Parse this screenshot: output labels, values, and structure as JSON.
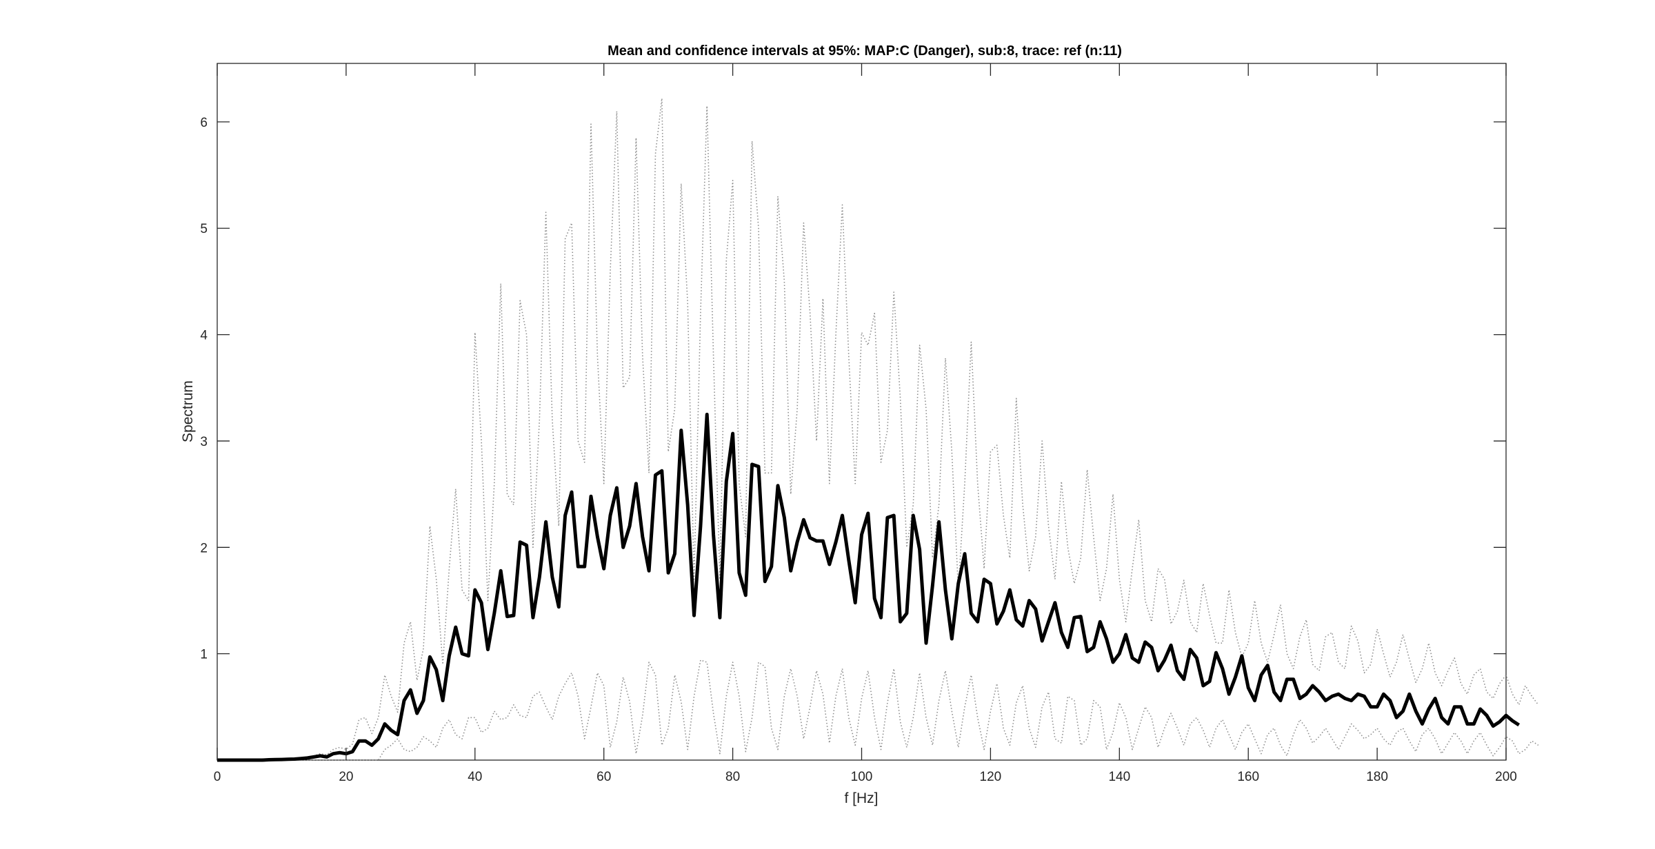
{
  "chart_data": {
    "type": "line",
    "title": "Mean and confidence intervals at 95%: MAP:C (Danger), sub:8, trace: ref (n:11)",
    "xlabel": "f [Hz]",
    "ylabel": "Spectrum",
    "xlim": [
      0,
      200
    ],
    "ylim": [
      0,
      6.55
    ],
    "xticks": [
      0,
      20,
      40,
      60,
      80,
      100,
      120,
      140,
      160,
      180,
      200
    ],
    "yticks": [
      1,
      2,
      3,
      4,
      5,
      6
    ],
    "grid": false,
    "legend": "none",
    "x_step": 1,
    "series": [
      {
        "role": "mean",
        "style": "solid-thick",
        "color": "#000000",
        "values": [
          0,
          0,
          0,
          0,
          0,
          0,
          0,
          0,
          0.003,
          0.005,
          0.006,
          0.008,
          0.01,
          0.015,
          0.02,
          0.03,
          0.04,
          0.03,
          0.06,
          0.07,
          0.06,
          0.08,
          0.18,
          0.18,
          0.14,
          0.2,
          0.34,
          0.28,
          0.24,
          0.56,
          0.66,
          0.44,
          0.56,
          0.97,
          0.85,
          0.56,
          0.98,
          1.25,
          1.0,
          0.98,
          1.6,
          1.48,
          1.04,
          1.38,
          1.78,
          1.35,
          1.36,
          2.05,
          2.02,
          1.34,
          1.72,
          2.24,
          1.72,
          1.44,
          2.3,
          2.52,
          1.82,
          1.82,
          2.48,
          2.1,
          1.8,
          2.3,
          2.56,
          2.0,
          2.2,
          2.6,
          2.1,
          1.78,
          2.68,
          2.72,
          1.76,
          1.94,
          3.1,
          2.4,
          1.36,
          2.2,
          3.25,
          2.12,
          1.34,
          2.62,
          3.07,
          1.76,
          1.55,
          2.78,
          2.76,
          1.68,
          1.82,
          2.58,
          2.28,
          1.78,
          2.05,
          2.26,
          2.09,
          2.06,
          2.06,
          1.84,
          2.05,
          2.3,
          1.88,
          1.48,
          2.12,
          2.32,
          1.52,
          1.34,
          2.28,
          2.3,
          1.3,
          1.38,
          2.3,
          1.98,
          1.1,
          1.64,
          2.24,
          1.6,
          1.14,
          1.66,
          1.94,
          1.38,
          1.3,
          1.7,
          1.66,
          1.28,
          1.4,
          1.6,
          1.32,
          1.26,
          1.5,
          1.42,
          1.12,
          1.3,
          1.48,
          1.2,
          1.06,
          1.34,
          1.35,
          1.02,
          1.06,
          1.3,
          1.14,
          0.92,
          1.0,
          1.18,
          0.96,
          0.92,
          1.11,
          1.06,
          0.84,
          0.94,
          1.08,
          0.84,
          0.76,
          1.04,
          0.96,
          0.7,
          0.74,
          1.01,
          0.86,
          0.62,
          0.78,
          0.98,
          0.68,
          0.56,
          0.8,
          0.89,
          0.64,
          0.56,
          0.76,
          0.76,
          0.58,
          0.62,
          0.7,
          0.64,
          0.56,
          0.6,
          0.62,
          0.58,
          0.56,
          0.62,
          0.6,
          0.5,
          0.5,
          0.62,
          0.56,
          0.4,
          0.46,
          0.62,
          0.46,
          0.34,
          0.48,
          0.58,
          0.4,
          0.34,
          0.5,
          0.5,
          0.34,
          0.34,
          0.48,
          0.42,
          0.32,
          0.36,
          0.42,
          0.37,
          0.33
        ]
      },
      {
        "role": "upper-ci",
        "style": "dotted",
        "color": "#8c8c8c",
        "values": [
          0,
          0,
          0,
          0,
          0,
          0,
          0,
          0,
          0.005,
          0.008,
          0.01,
          0.012,
          0.015,
          0.02,
          0.03,
          0.04,
          0.06,
          0.05,
          0.1,
          0.12,
          0.1,
          0.15,
          0.38,
          0.4,
          0.25,
          0.4,
          0.8,
          0.6,
          0.45,
          1.1,
          1.3,
          0.75,
          1.05,
          2.2,
          1.7,
          0.9,
          1.8,
          2.55,
          1.6,
          1.5,
          4.02,
          3.0,
          1.5,
          2.6,
          4.48,
          2.5,
          2.4,
          4.32,
          4.0,
          2.0,
          3.2,
          5.15,
          3.2,
          2.2,
          4.9,
          5.05,
          3.0,
          2.8,
          5.98,
          3.8,
          2.6,
          4.6,
          6.1,
          3.5,
          3.6,
          5.85,
          3.8,
          2.7,
          5.7,
          6.22,
          2.9,
          3.3,
          5.42,
          4.3,
          1.7,
          4.2,
          6.15,
          3.8,
          1.7,
          4.7,
          5.45,
          2.6,
          2.1,
          5.82,
          5.0,
          2.7,
          2.7,
          5.3,
          4.5,
          2.5,
          3.3,
          5.05,
          4.2,
          3.0,
          4.34,
          2.6,
          4.0,
          5.22,
          3.8,
          2.6,
          4.02,
          3.9,
          4.2,
          2.8,
          3.1,
          4.4,
          3.4,
          2.0,
          2.4,
          3.9,
          3.3,
          1.9,
          2.4,
          3.78,
          2.9,
          1.6,
          2.6,
          3.93,
          2.6,
          1.8,
          2.9,
          2.96,
          2.3,
          1.9,
          3.4,
          2.4,
          1.78,
          2.1,
          3.0,
          2.2,
          1.7,
          2.62,
          2.0,
          1.66,
          1.9,
          2.73,
          2.1,
          1.5,
          1.8,
          2.5,
          1.7,
          1.3,
          1.8,
          2.26,
          1.5,
          1.3,
          1.8,
          1.7,
          1.28,
          1.4,
          1.69,
          1.3,
          1.2,
          1.66,
          1.36,
          1.1,
          1.1,
          1.6,
          1.2,
          0.97,
          1.1,
          1.5,
          1.1,
          0.92,
          1.18,
          1.46,
          1.0,
          0.86,
          1.16,
          1.32,
          0.9,
          0.84,
          1.16,
          1.2,
          0.92,
          0.86,
          1.26,
          1.12,
          0.82,
          0.9,
          1.23,
          1.0,
          0.78,
          0.92,
          1.18,
          0.95,
          0.73,
          0.86,
          1.1,
          0.82,
          0.7,
          0.84,
          0.96,
          0.72,
          0.62,
          0.8,
          0.86,
          0.64,
          0.58,
          0.72,
          0.8,
          0.62,
          0.52,
          0.7,
          0.6,
          0.52
        ]
      },
      {
        "role": "lower-ci",
        "style": "dotted",
        "color": "#8c8c8c",
        "values": [
          0,
          0,
          0,
          0,
          0,
          0,
          0,
          0,
          0,
          0,
          0,
          0,
          0,
          0,
          0,
          0,
          0,
          0,
          0,
          0,
          0,
          0,
          0,
          0,
          0,
          0,
          0.1,
          0.14,
          0.2,
          0.1,
          0.08,
          0.12,
          0.22,
          0.18,
          0.12,
          0.3,
          0.38,
          0.24,
          0.2,
          0.4,
          0.4,
          0.26,
          0.3,
          0.46,
          0.38,
          0.4,
          0.52,
          0.42,
          0.4,
          0.6,
          0.64,
          0.5,
          0.38,
          0.6,
          0.72,
          0.82,
          0.6,
          0.2,
          0.5,
          0.82,
          0.7,
          0.12,
          0.36,
          0.78,
          0.55,
          0.06,
          0.42,
          0.92,
          0.8,
          0.14,
          0.3,
          0.8,
          0.55,
          0.1,
          0.6,
          0.94,
          0.92,
          0.44,
          0.06,
          0.6,
          0.92,
          0.6,
          0.08,
          0.4,
          0.92,
          0.88,
          0.3,
          0.1,
          0.6,
          0.86,
          0.6,
          0.2,
          0.5,
          0.84,
          0.62,
          0.16,
          0.6,
          0.86,
          0.4,
          0.14,
          0.58,
          0.84,
          0.4,
          0.1,
          0.54,
          0.86,
          0.36,
          0.12,
          0.4,
          0.82,
          0.4,
          0.14,
          0.56,
          0.84,
          0.46,
          0.12,
          0.5,
          0.8,
          0.4,
          0.1,
          0.46,
          0.72,
          0.3,
          0.14,
          0.54,
          0.7,
          0.3,
          0.12,
          0.5,
          0.64,
          0.2,
          0.16,
          0.6,
          0.56,
          0.14,
          0.2,
          0.56,
          0.5,
          0.1,
          0.26,
          0.54,
          0.4,
          0.1,
          0.3,
          0.5,
          0.4,
          0.12,
          0.3,
          0.44,
          0.3,
          0.14,
          0.34,
          0.4,
          0.28,
          0.12,
          0.3,
          0.38,
          0.24,
          0.1,
          0.26,
          0.34,
          0.2,
          0.06,
          0.24,
          0.3,
          0.14,
          0.04,
          0.24,
          0.38,
          0.3,
          0.16,
          0.22,
          0.3,
          0.2,
          0.1,
          0.22,
          0.34,
          0.28,
          0.2,
          0.24,
          0.3,
          0.2,
          0.14,
          0.26,
          0.3,
          0.18,
          0.08,
          0.24,
          0.3,
          0.2,
          0.06,
          0.16,
          0.26,
          0.18,
          0.06,
          0.18,
          0.26,
          0.14,
          0.04,
          0.12,
          0.22,
          0.18,
          0.06,
          0.1,
          0.18,
          0.14
        ]
      }
    ]
  }
}
